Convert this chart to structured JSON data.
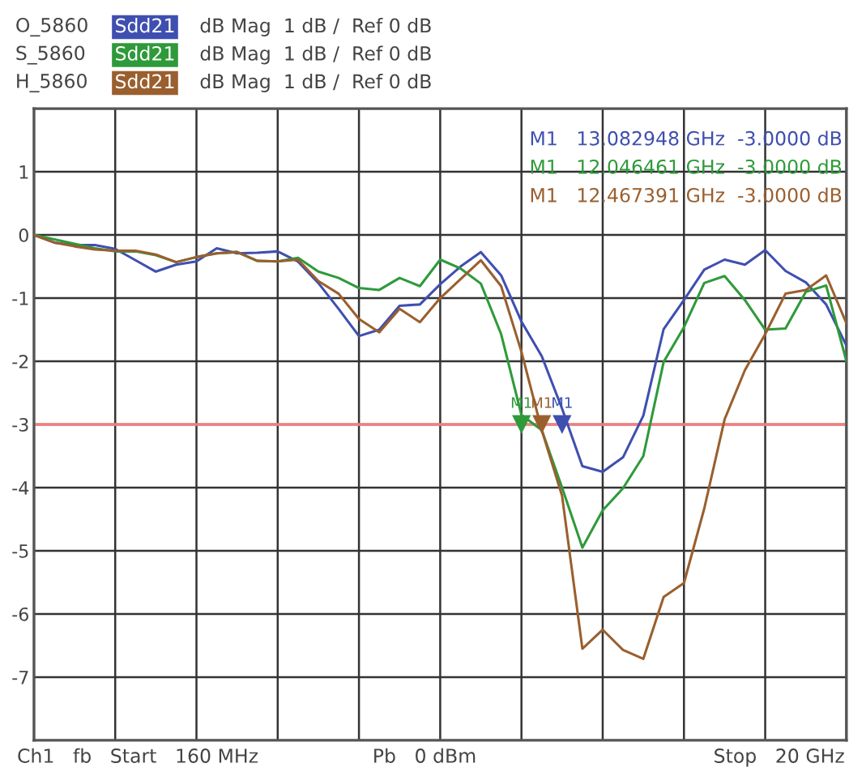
{
  "chart_data": {
    "type": "line",
    "categories": [
      null,
      null,
      null,
      null,
      null,
      null,
      null,
      null,
      null,
      null,
      null,
      null,
      null,
      null,
      null,
      null,
      null,
      null,
      null,
      null,
      null,
      null,
      null,
      null,
      null,
      null,
      null,
      null,
      null,
      null,
      null,
      null,
      null,
      null,
      null,
      null,
      null,
      null,
      null,
      null,
      null
    ],
    "series": [
      {
        "name": "O_5860",
        "color": "#3f4fb0",
        "values": [
          0.0,
          -0.12,
          -0.16,
          -0.16,
          -0.22,
          -0.4,
          -0.58,
          -0.47,
          -0.42,
          -0.21,
          -0.29,
          -0.28,
          -0.26,
          -0.42,
          -0.76,
          -1.17,
          -1.6,
          -1.5,
          -1.12,
          -1.1,
          -0.78,
          -0.5,
          -0.27,
          -0.64,
          -1.37,
          -1.92,
          -2.75,
          -3.66,
          -3.75,
          -3.52,
          -2.86,
          -1.49,
          -1.03,
          -0.55,
          -0.39,
          -0.47,
          -0.24,
          -0.57,
          -0.75,
          -1.1,
          -1.75
        ]
      },
      {
        "name": "S_5860",
        "color": "#2e9a3a",
        "values": [
          0.0,
          -0.07,
          -0.14,
          -0.21,
          -0.26,
          -0.26,
          -0.32,
          -0.43,
          -0.35,
          -0.29,
          -0.27,
          -0.41,
          -0.42,
          -0.36,
          -0.58,
          -0.68,
          -0.84,
          -0.87,
          -0.68,
          -0.81,
          -0.39,
          -0.53,
          -0.77,
          -1.57,
          -2.85,
          -3.09,
          -4.0,
          -4.95,
          -4.36,
          -4.01,
          -3.5,
          -2.01,
          -1.46,
          -0.76,
          -0.65,
          -1.03,
          -1.5,
          -1.48,
          -0.9,
          -0.8,
          -2.0
        ]
      },
      {
        "name": "H_5860",
        "color": "#9a5f2e",
        "values": [
          0.0,
          -0.12,
          -0.18,
          -0.23,
          -0.25,
          -0.25,
          -0.31,
          -0.43,
          -0.35,
          -0.29,
          -0.27,
          -0.41,
          -0.42,
          -0.39,
          -0.73,
          -0.93,
          -1.33,
          -1.54,
          -1.17,
          -1.38,
          -1.0,
          -0.7,
          -0.4,
          -0.81,
          -1.85,
          -3.09,
          -4.13,
          -6.55,
          -6.25,
          -6.57,
          -6.71,
          -5.73,
          -5.51,
          -4.33,
          -2.92,
          -2.14,
          -1.57,
          -0.93,
          -0.87,
          -0.64,
          -1.4
        ]
      },
      {
        "type": "scatter",
        "color": "#2e9a3a",
        "marker": "triangle",
        "values": [
          null,
          null,
          null,
          null,
          null,
          null,
          null,
          null,
          null,
          null,
          null,
          null,
          null,
          null,
          null,
          null,
          null,
          null,
          null,
          null,
          null,
          null,
          null,
          null,
          -3.0,
          null,
          null,
          null,
          null,
          null,
          null,
          null,
          null,
          null,
          null,
          null,
          null,
          null,
          null,
          null,
          null
        ],
        "value_labels": [
          null,
          null,
          null,
          null,
          null,
          null,
          null,
          null,
          null,
          null,
          null,
          null,
          null,
          null,
          null,
          null,
          null,
          null,
          null,
          null,
          null,
          null,
          null,
          null,
          "M1",
          null,
          null,
          null,
          null,
          null,
          null,
          null,
          null,
          null,
          null,
          null,
          null,
          null,
          null,
          null,
          null
        ]
      },
      {
        "type": "scatter",
        "color": "#9a5f2e",
        "marker": "triangle",
        "values": [
          null,
          null,
          null,
          null,
          null,
          null,
          null,
          null,
          null,
          null,
          null,
          null,
          null,
          null,
          null,
          null,
          null,
          null,
          null,
          null,
          null,
          null,
          null,
          null,
          null,
          -3.0,
          null,
          null,
          null,
          null,
          null,
          null,
          null,
          null,
          null,
          null,
          null,
          null,
          null,
          null,
          null
        ],
        "value_labels": [
          null,
          null,
          null,
          null,
          null,
          null,
          null,
          null,
          null,
          null,
          null,
          null,
          null,
          null,
          null,
          null,
          null,
          null,
          null,
          null,
          null,
          null,
          null,
          null,
          null,
          "M1",
          null,
          null,
          null,
          null,
          null,
          null,
          null,
          null,
          null,
          null,
          null,
          null,
          null,
          null,
          null
        ]
      },
      {
        "type": "scatter",
        "color": "#3f4fb0",
        "marker": "triangle",
        "values": [
          null,
          null,
          null,
          null,
          null,
          null,
          null,
          null,
          null,
          null,
          null,
          null,
          null,
          null,
          null,
          null,
          null,
          null,
          null,
          null,
          null,
          null,
          null,
          null,
          null,
          null,
          -3.0,
          null,
          null,
          null,
          null,
          null,
          null,
          null,
          null,
          null,
          null,
          null,
          null,
          null,
          null
        ],
        "value_labels": [
          null,
          null,
          null,
          null,
          null,
          null,
          null,
          null,
          null,
          null,
          null,
          null,
          null,
          null,
          null,
          null,
          null,
          null,
          null,
          null,
          null,
          null,
          null,
          null,
          null,
          null,
          "M1",
          null,
          null,
          null,
          null,
          null,
          null,
          null,
          null,
          null,
          null,
          null,
          null,
          null,
          null
        ]
      }
    ],
    "ylim": [
      -8,
      2
    ],
    "yticks": [
      -7,
      -6,
      -5,
      -4,
      -3,
      -2,
      -1,
      0,
      1
    ],
    "tick_labels": "y",
    "grid": true,
    "legend": "top left",
    "ref_lines": [
      {
        "axis": "y",
        "value": -3,
        "color": "#f08080"
      }
    ],
    "annotations": [
      "Sdd21",
      "dB Mag  1 dB /  Ref 0 dB",
      "Sdd21",
      "dB Mag  1 dB /  Ref 0 dB",
      "Sdd21",
      "dB Mag  1 dB /  Ref 0 dB",
      "M1   13.082948 GHz  -3.0000 dB",
      "M1   12.046461 GHz  -3.0000 dB",
      "M1   12.467391 GHz  -3.0000 dB",
      "Ch1   fb   Start   160 MHz",
      "Pb   0 dBm",
      "Stop   20 GHz"
    ]
  }
}
